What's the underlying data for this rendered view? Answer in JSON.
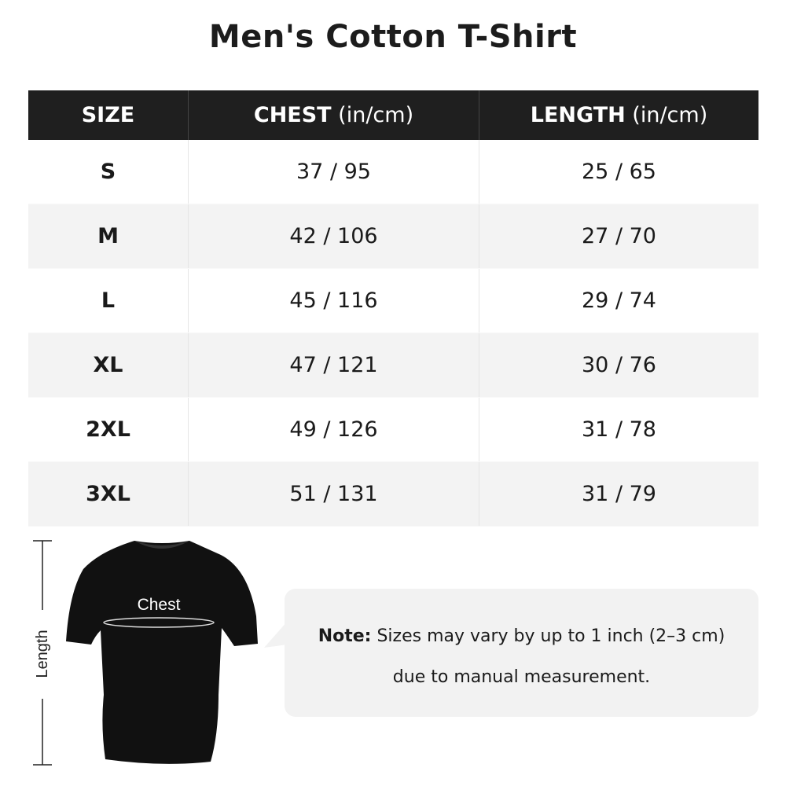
{
  "title": "Men's Cotton T-Shirt",
  "table": {
    "headers": [
      {
        "label": "SIZE",
        "unit": ""
      },
      {
        "label": "CHEST",
        "unit": " (in/cm)"
      },
      {
        "label": "LENGTH",
        "unit": " (in/cm)"
      }
    ],
    "rows": [
      [
        "S",
        "37 / 95",
        "25 / 65"
      ],
      [
        "M",
        "42 / 106",
        "27 / 70"
      ],
      [
        "L",
        "45 / 116",
        "29 / 74"
      ],
      [
        "XL",
        "47 / 121",
        "30 / 76"
      ],
      [
        "2XL",
        "49 / 126",
        "31 / 78"
      ],
      [
        "3XL",
        "51 / 131",
        "31 / 79"
      ]
    ]
  },
  "diagram": {
    "chest_label": "Chest",
    "length_label": "Length"
  },
  "note": {
    "label": "Note:",
    "line1": " Sizes may vary by up to 1 inch (2–3 cm)",
    "line2": "due to manual measurement."
  }
}
